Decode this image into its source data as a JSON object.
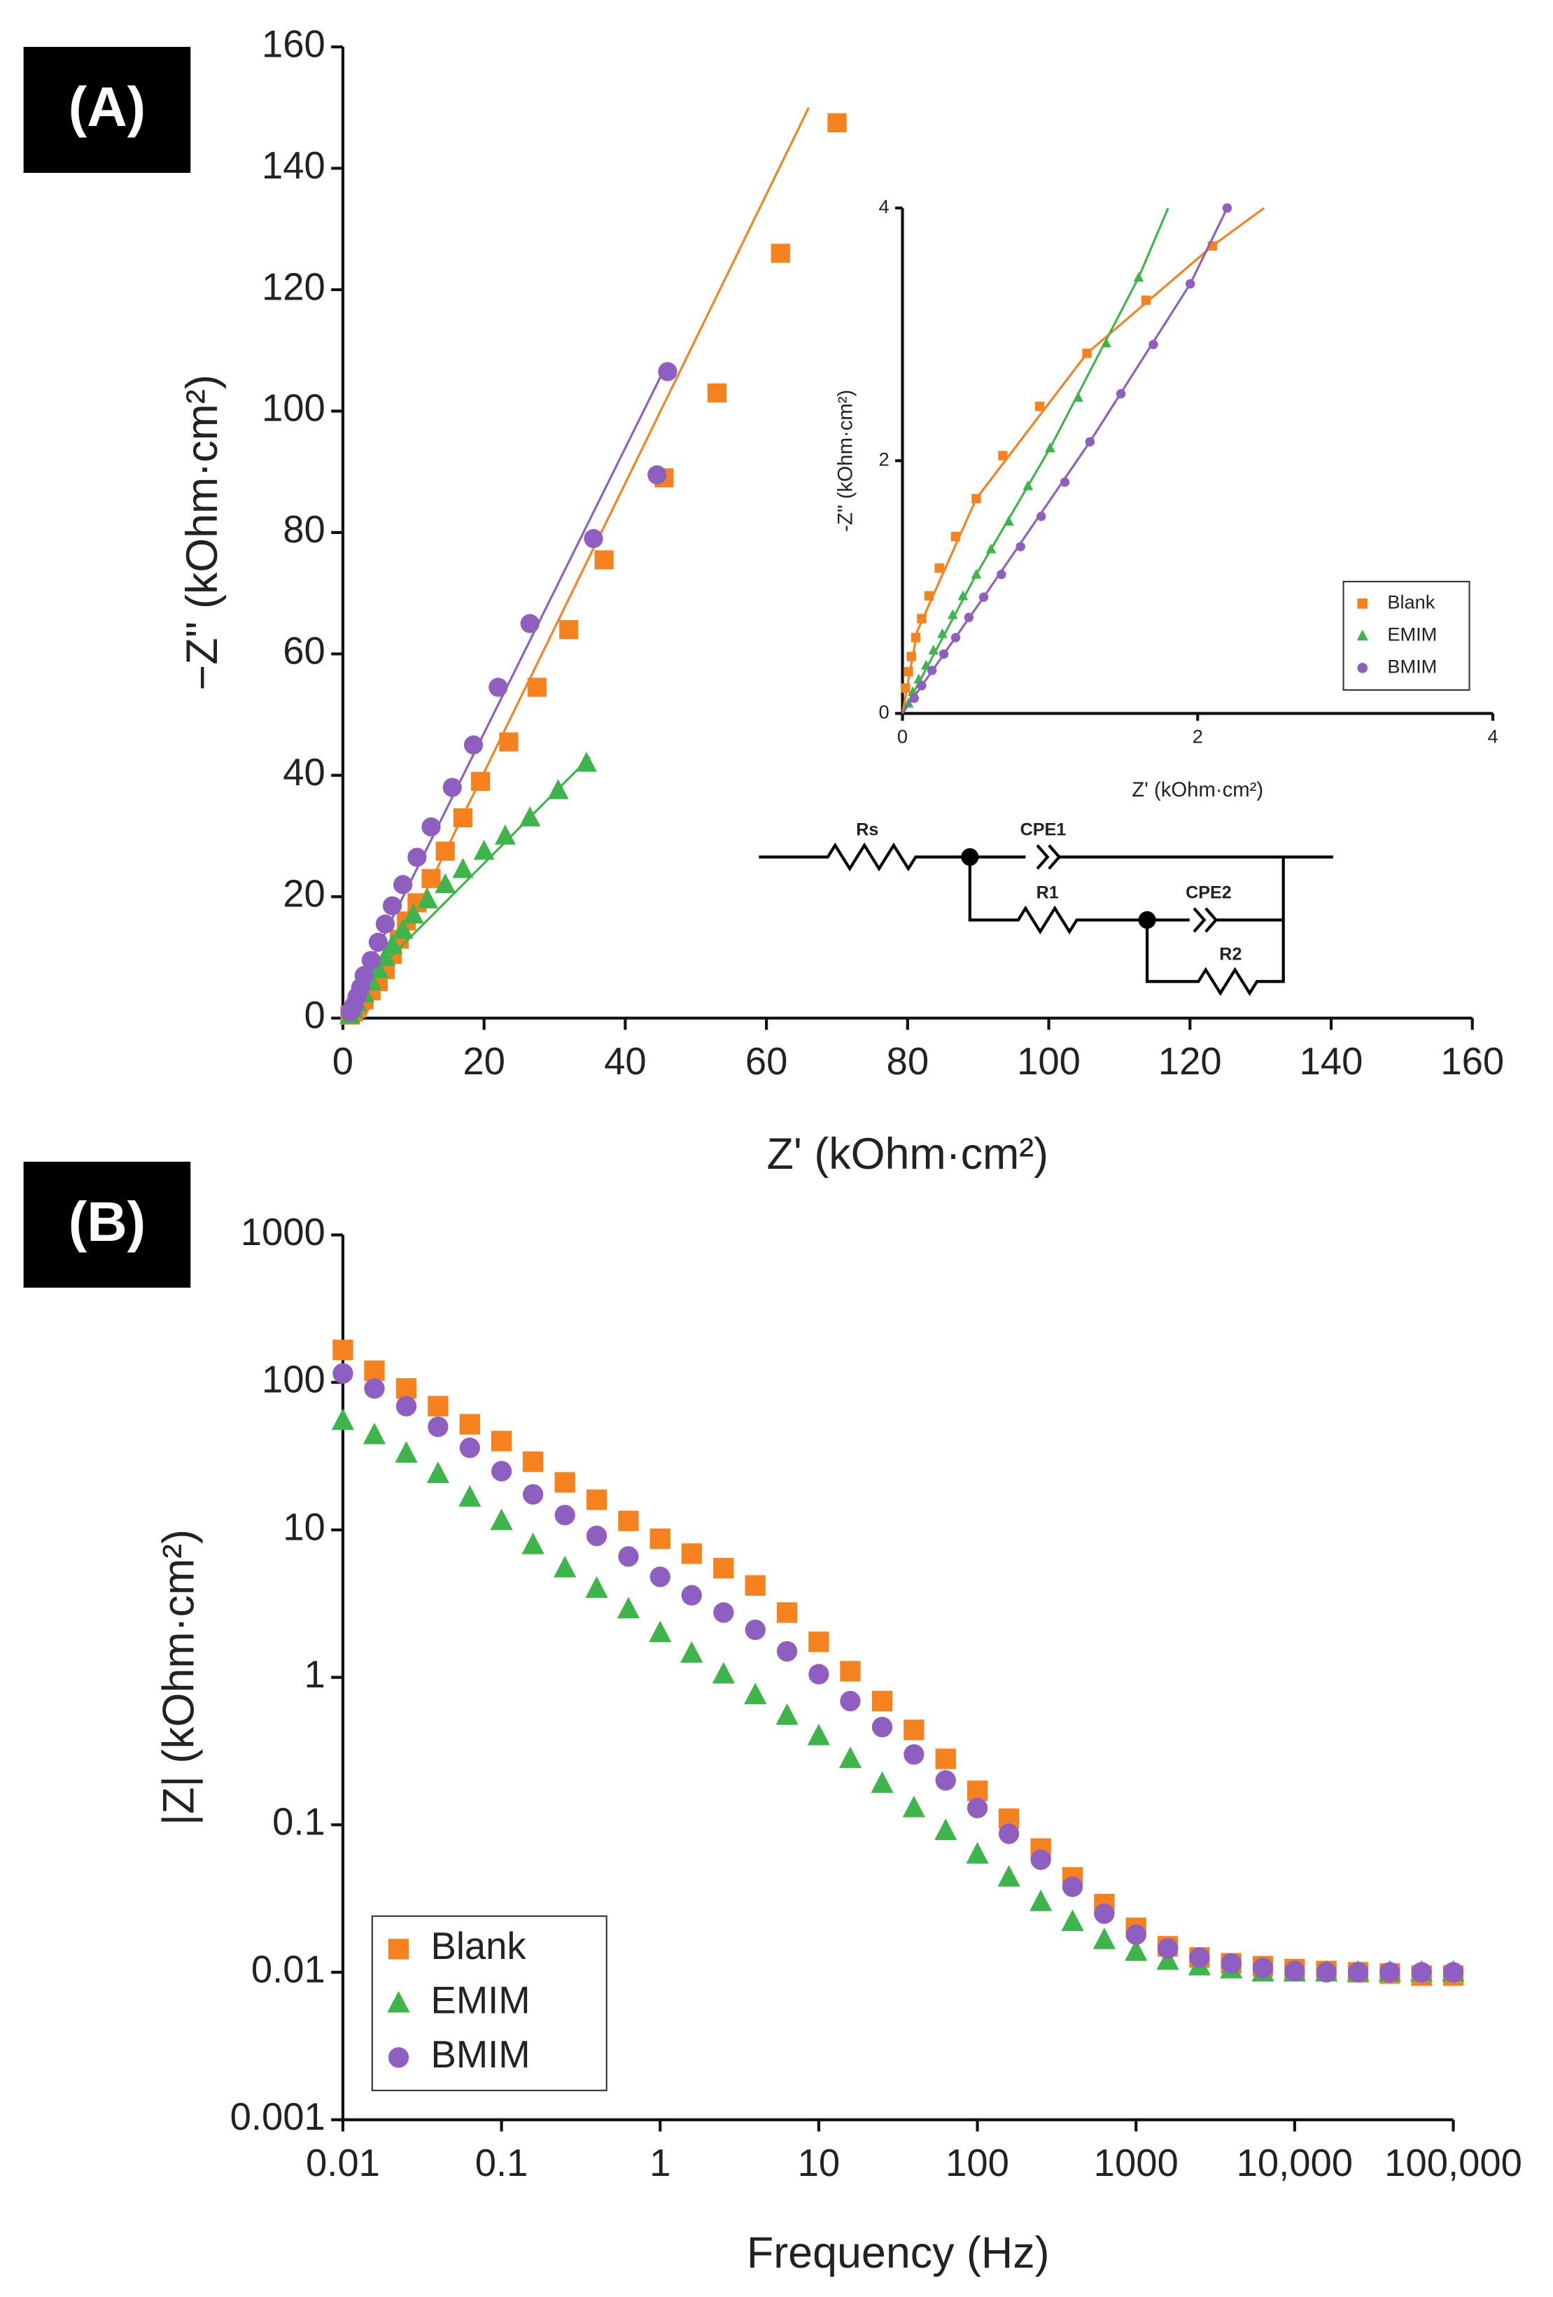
{
  "chart_data": [
    {
      "type": "scatter",
      "panel_label": "(A)",
      "xlabel": "Z' (kOhm·cm²)",
      "ylabel": "−Z'' (kOhm·cm²)",
      "xlim": [
        0,
        160
      ],
      "ylim": [
        0,
        160
      ],
      "xticks": [
        0,
        20,
        40,
        60,
        80,
        100,
        120,
        140,
        160
      ],
      "yticks": [
        0,
        20,
        40,
        60,
        80,
        100,
        120,
        140,
        160
      ],
      "circuit_labels": [
        "Rs",
        "CPE1",
        "R1",
        "CPE2",
        "R2"
      ],
      "series": [
        {
          "color": "#f5821f",
          "marker": "square",
          "x": [
            70,
            62,
            53,
            45.5,
            37,
            32,
            27.5,
            23.5,
            19.5,
            17,
            14.5,
            12.5,
            10.5,
            9,
            8,
            7,
            6,
            5,
            4,
            3,
            2,
            1.5,
            1
          ],
          "values": [
            147.5,
            126,
            103,
            89,
            75.5,
            64,
            54.5,
            45.5,
            39,
            33,
            27.5,
            23,
            19,
            16,
            13,
            10.5,
            8,
            6,
            4.5,
            3,
            2,
            1,
            0.5
          ],
          "fit_x": [
            3,
            66
          ],
          "fit_y": [
            0,
            150
          ]
        },
        {
          "color": "#3db54a",
          "marker": "triangle",
          "x": [
            34.5,
            30.5,
            26.5,
            23,
            20,
            17,
            14.5,
            12,
            10,
            8.5,
            7,
            6,
            5,
            4,
            3,
            2,
            1.5,
            1
          ],
          "values": [
            42,
            37.5,
            33,
            30,
            27.5,
            24.5,
            22,
            19.5,
            17,
            14.5,
            12,
            10,
            8,
            6,
            4,
            2.5,
            1.5,
            0.5
          ],
          "fit_x": [
            0,
            5,
            35
          ],
          "fit_y": [
            0,
            8,
            43
          ]
        },
        {
          "color": "#8e5fc0",
          "marker": "circle",
          "x": [
            46,
            44.5,
            35.5,
            26.5,
            22,
            18.5,
            15.5,
            12.5,
            10.5,
            8.5,
            7,
            6,
            5,
            4,
            3,
            2.5,
            2,
            1.5,
            1
          ],
          "values": [
            106.5,
            89.5,
            79,
            65,
            54.5,
            45,
            38,
            31.5,
            26.5,
            22,
            18.5,
            15.5,
            12.5,
            9.5,
            7,
            5,
            3.5,
            2,
            1
          ],
          "fit_x": [
            0,
            46
          ],
          "fit_y": [
            0,
            108
          ]
        }
      ]
    },
    {
      "type": "scatter",
      "xlabel": "Z' (kOhm·cm²)",
      "ylabel": "-Z'' (kOhm·cm²)",
      "xlim": [
        0,
        4
      ],
      "ylim": [
        0,
        4
      ],
      "xticks": [
        0,
        2,
        4
      ],
      "yticks": [
        0,
        2,
        4
      ],
      "legend": "lower right",
      "series": [
        {
          "name": "Blank",
          "color": "#f5821f",
          "marker": "square",
          "x": [
            2.1,
            1.65,
            1.25,
            0.93,
            0.68,
            0.5,
            0.36,
            0.25,
            0.18,
            0.13,
            0.09,
            0.06,
            0.04,
            0.02
          ],
          "values": [
            3.7,
            3.27,
            2.85,
            2.43,
            2.04,
            1.7,
            1.4,
            1.15,
            0.93,
            0.75,
            0.6,
            0.45,
            0.33,
            0.2
          ],
          "fit_x": [
            0,
            0.1,
            0.5,
            1.25,
            2.1,
            2.45
          ],
          "fit_y": [
            0,
            0.65,
            1.7,
            2.85,
            3.7,
            4
          ]
        },
        {
          "name": "EMIM",
          "color": "#3db54a",
          "marker": "triangle",
          "x": [
            1.6,
            1.38,
            1.19,
            1,
            0.85,
            0.72,
            0.6,
            0.5,
            0.41,
            0.34,
            0.27,
            0.21,
            0.16,
            0.11,
            0.07,
            0.04
          ],
          "values": [
            3.45,
            2.93,
            2.5,
            2.1,
            1.8,
            1.52,
            1.3,
            1.1,
            0.93,
            0.78,
            0.63,
            0.5,
            0.38,
            0.27,
            0.17,
            0.08
          ],
          "fit_x": [
            0,
            0.5,
            1,
            1.6,
            1.8
          ],
          "fit_y": [
            0,
            1.1,
            2.1,
            3.45,
            4
          ]
        },
        {
          "name": "BMIM",
          "color": "#8e5fc0",
          "marker": "circle",
          "x": [
            2.2,
            1.95,
            1.7,
            1.48,
            1.27,
            1.1,
            0.94,
            0.8,
            0.67,
            0.55,
            0.45,
            0.36,
            0.28,
            0.2,
            0.13,
            0.08
          ],
          "values": [
            4,
            3.4,
            2.92,
            2.53,
            2.15,
            1.83,
            1.56,
            1.32,
            1.1,
            0.92,
            0.76,
            0.6,
            0.47,
            0.34,
            0.22,
            0.12
          ],
          "fit_x": [
            0,
            0.55,
            1.27,
            1.95,
            2.2
          ],
          "fit_y": [
            0,
            0.92,
            2.15,
            3.4,
            4
          ]
        }
      ]
    },
    {
      "type": "scatter",
      "panel_label": "(B)",
      "xlabel": "Frequency (Hz)",
      "ylabel": "|Z| (kOhm·cm²)",
      "log_x": true,
      "log_y": true,
      "legend": "lower left",
      "xlim": [
        0.01,
        100000
      ],
      "ylim": [
        0.001,
        1000
      ],
      "xticks": [
        0.01,
        0.1,
        1,
        10,
        100,
        1000,
        {
          "value": 10000,
          "label": "10,000"
        },
        {
          "value": 100000,
          "label": "100,000"
        }
      ],
      "yticks": [
        0.001,
        0.01,
        0.1,
        1,
        10,
        100,
        1000
      ],
      "x": [
        0.01,
        0.0158,
        0.0251,
        0.0398,
        0.0631,
        0.1,
        0.158,
        0.251,
        0.398,
        0.631,
        1,
        1.58,
        2.51,
        3.98,
        6.31,
        10,
        15.8,
        25.1,
        39.8,
        63.1,
        100,
        158,
        251,
        398,
        631,
        1000,
        1585,
        2512,
        3981,
        6310,
        10000,
        15849,
        25119,
        39811,
        63096,
        100000
      ],
      "series": [
        {
          "name": "Blank",
          "color": "#f5821f",
          "marker": "square",
          "values": [
            166,
            120,
            91,
            69,
            52,
            40,
            29,
            21,
            16,
            11.5,
            8.7,
            6.9,
            5.5,
            4.2,
            2.75,
            1.74,
            1.1,
            0.69,
            0.44,
            0.28,
            0.17,
            0.11,
            0.069,
            0.044,
            0.029,
            0.02,
            0.015,
            0.0126,
            0.0115,
            0.011,
            0.0105,
            0.0102,
            0.01,
            0.0098,
            0.0095,
            0.0095
          ]
        },
        {
          "name": "EMIM",
          "color": "#3db54a",
          "marker": "triangle",
          "values": [
            55,
            44,
            33,
            24,
            16.6,
            11.5,
            7.9,
            5.5,
            4,
            2.9,
            2,
            1.45,
            1.05,
            0.76,
            0.55,
            0.4,
            0.28,
            0.19,
            0.13,
            0.091,
            0.063,
            0.044,
            0.03,
            0.022,
            0.0166,
            0.0138,
            0.012,
            0.011,
            0.0105,
            0.01,
            0.01,
            0.01,
            0.01,
            0.01,
            0.01,
            0.01
          ]
        },
        {
          "name": "BMIM",
          "color": "#8e5fc0",
          "marker": "circle",
          "values": [
            115,
            91,
            69,
            50,
            36,
            25,
            17.4,
            12.6,
            9.1,
            6.6,
            4.8,
            3.6,
            2.75,
            2.1,
            1.5,
            1.05,
            0.69,
            0.46,
            0.3,
            0.2,
            0.13,
            0.087,
            0.058,
            0.038,
            0.025,
            0.018,
            0.0145,
            0.0126,
            0.0115,
            0.0107,
            0.0102,
            0.01,
            0.01,
            0.01,
            0.01,
            0.01
          ]
        }
      ]
    }
  ]
}
